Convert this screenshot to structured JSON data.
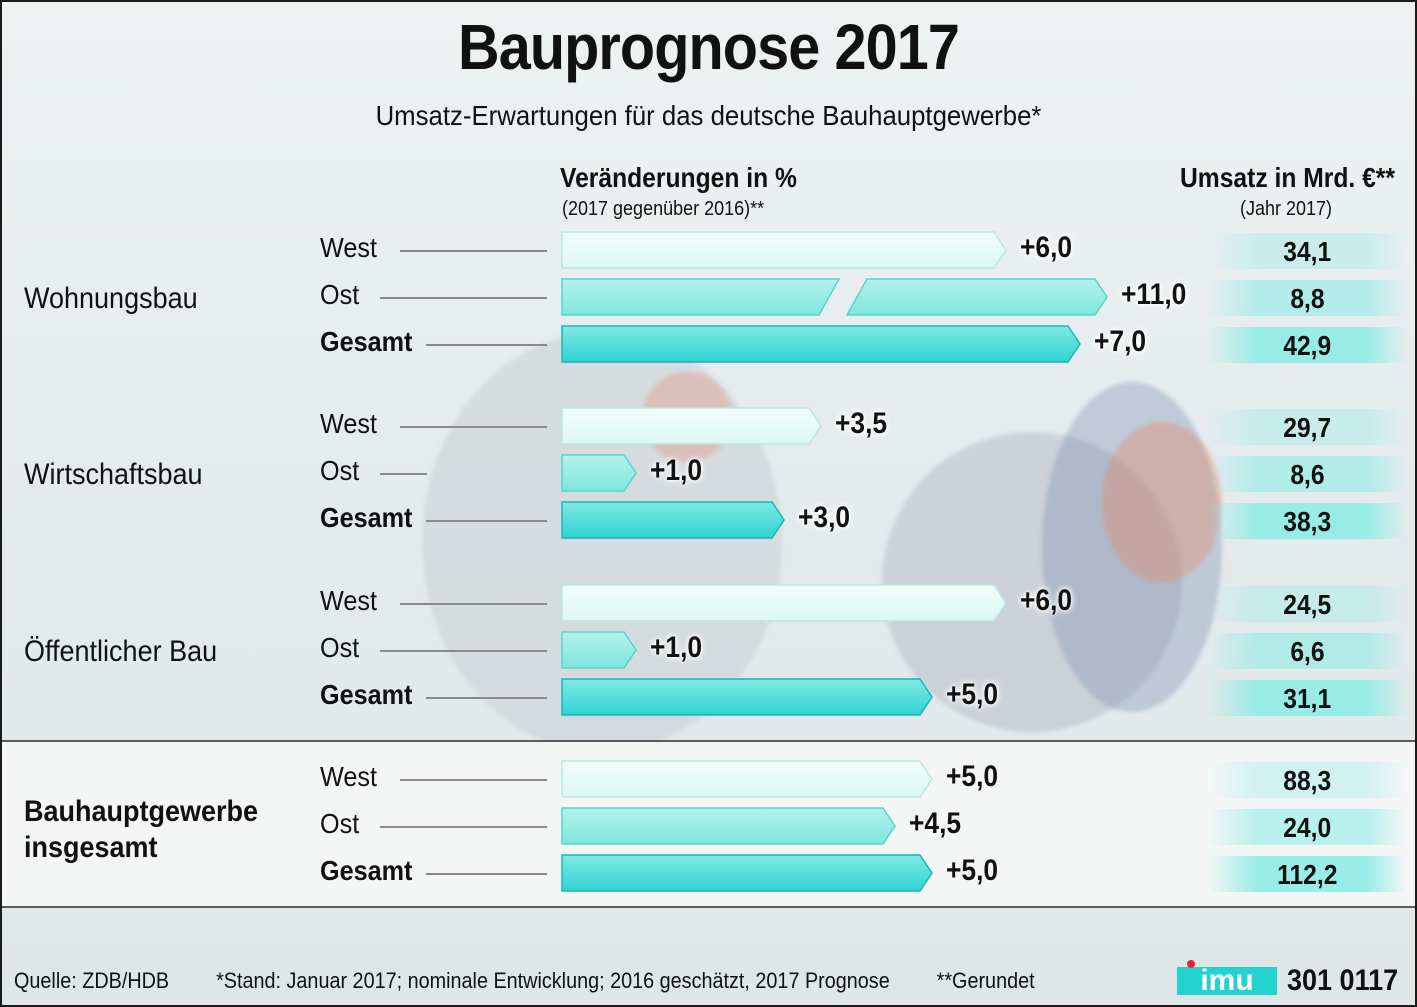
{
  "title": "Bauprognose 2017",
  "subtitle": "Umsatz-Erwartungen für das deutsche Bauhauptgewerbe*",
  "headers": {
    "change_title": "Veränderungen in %",
    "change_sub": "(2017 gegenüber 2016)**",
    "revenue_title": "Umsatz in Mrd. €**",
    "revenue_sub": "(Jahr 2017)"
  },
  "colors": {
    "west": "#dcf7f1",
    "ost": "#7fe6dd",
    "gesamt": "#2fd3d2",
    "cell": "#8fece6"
  },
  "chart_data": {
    "type": "bar",
    "title": "Bauprognose 2017",
    "subtitle": "Umsatz-Erwartungen für das deutsche Bauhauptgewerbe*",
    "xlabel": "Veränderungen in %",
    "groups": [
      {
        "name": "Wohnungsbau",
        "rows": [
          {
            "label": "West",
            "change": 6.0,
            "change_label": "+6,0",
            "umsatz": 34.1,
            "umsatz_label": "34,1"
          },
          {
            "label": "Ost",
            "change": 11.0,
            "change_label": "+11,0",
            "umsatz": 8.8,
            "umsatz_label": "8,8",
            "broken": true
          },
          {
            "label": "Gesamt",
            "change": 7.0,
            "change_label": "+7,0",
            "umsatz": 42.9,
            "umsatz_label": "42,9"
          }
        ]
      },
      {
        "name": "Wirtschaftsbau",
        "rows": [
          {
            "label": "West",
            "change": 3.5,
            "change_label": "+3,5",
            "umsatz": 29.7,
            "umsatz_label": "29,7"
          },
          {
            "label": "Ost",
            "change": 1.0,
            "change_label": "+1,0",
            "umsatz": 8.6,
            "umsatz_label": "8,6"
          },
          {
            "label": "Gesamt",
            "change": 3.0,
            "change_label": "+3,0",
            "umsatz": 38.3,
            "umsatz_label": "38,3"
          }
        ]
      },
      {
        "name": "Öffentlicher Bau",
        "rows": [
          {
            "label": "West",
            "change": 6.0,
            "change_label": "+6,0",
            "umsatz": 24.5,
            "umsatz_label": "24,5"
          },
          {
            "label": "Ost",
            "change": 1.0,
            "change_label": "+1,0",
            "umsatz": 6.6,
            "umsatz_label": "6,6"
          },
          {
            "label": "Gesamt",
            "change": 5.0,
            "change_label": "+5,0",
            "umsatz": 31.1,
            "umsatz_label": "31,1"
          }
        ]
      },
      {
        "name": "Bauhauptgewerbe insgesamt",
        "name_line1": "Bauhauptgewerbe",
        "name_line2": "insgesamt",
        "rows": [
          {
            "label": "West",
            "change": 5.0,
            "change_label": "+5,0",
            "umsatz": 88.3,
            "umsatz_label": "88,3"
          },
          {
            "label": "Ost",
            "change": 4.5,
            "change_label": "+4,5",
            "umsatz": 24.0,
            "umsatz_label": "24,0"
          },
          {
            "label": "Gesamt",
            "change": 5.0,
            "change_label": "+5,0",
            "umsatz": 112.2,
            "umsatz_label": "112,2"
          }
        ]
      }
    ]
  },
  "footer": {
    "source": "Quelle: ZDB/HDB",
    "note": "*Stand: Januar 2017; nominale Entwicklung; 2016 geschätzt, 2017 Prognose",
    "rounded": "**Gerundet",
    "logo": "imu",
    "code": "301 0117"
  }
}
